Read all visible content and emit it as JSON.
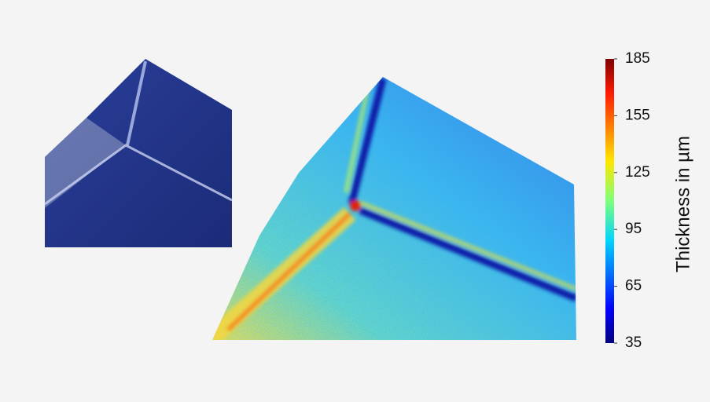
{
  "colorbar": {
    "label": "Thickness in µm",
    "clim": [
      35,
      185
    ],
    "ticks": [
      35,
      65,
      95,
      125,
      155,
      185
    ]
  }
}
